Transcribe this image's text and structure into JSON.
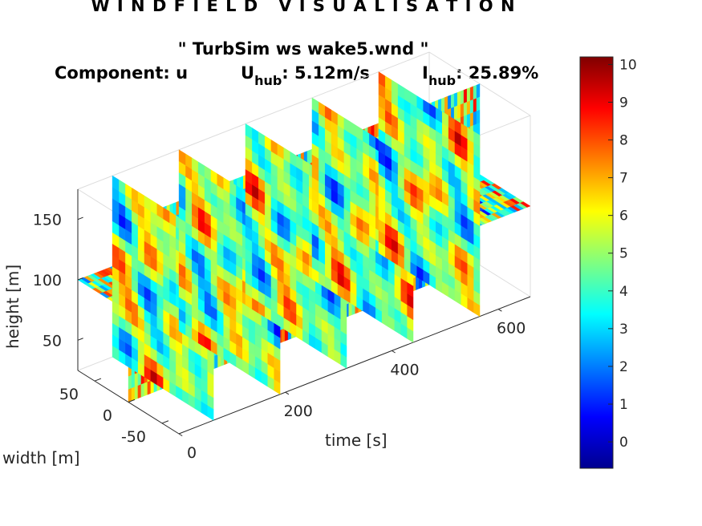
{
  "figure": {
    "suptitle": "W I N D F I E L D   V I S U A L I S A T I O N",
    "file_title": "\" TurbSim ws wake5.wnd \"",
    "component_label": "Component: u",
    "uhub_main": "U",
    "uhub_sub": "hub",
    "uhub_value": ": 5.12m/s",
    "ihub_main": "I",
    "ihub_sub": "hub",
    "ihub_value": ": 25.89%"
  },
  "chart_data": {
    "type": "heatmap",
    "subtype": "3d-slice",
    "quantity": "u",
    "axes": {
      "time": {
        "label": "time [s]",
        "ticks": [
          0,
          200,
          400,
          600
        ],
        "range": [
          0,
          660
        ]
      },
      "width": {
        "label": "width [m]",
        "ticks": [
          -50,
          0,
          50
        ],
        "range": [
          -75,
          75
        ]
      },
      "height": {
        "label": "height [m]",
        "ticks": [
          50,
          100,
          150
        ],
        "range": [
          25,
          175
        ]
      }
    },
    "cross_section_times": [
      65,
      190,
      315,
      440,
      565
    ],
    "colorbar": {
      "ticks": [
        0,
        1,
        2,
        3,
        4,
        5,
        6,
        7,
        8,
        9,
        10
      ],
      "range": [
        -0.7,
        10.2
      ],
      "colormap": "jet",
      "colors": [
        "#00008f",
        "#0000ff",
        "#00ffff",
        "#ffff00",
        "#ff0000",
        "#800000"
      ]
    },
    "grid": false,
    "box": true
  }
}
